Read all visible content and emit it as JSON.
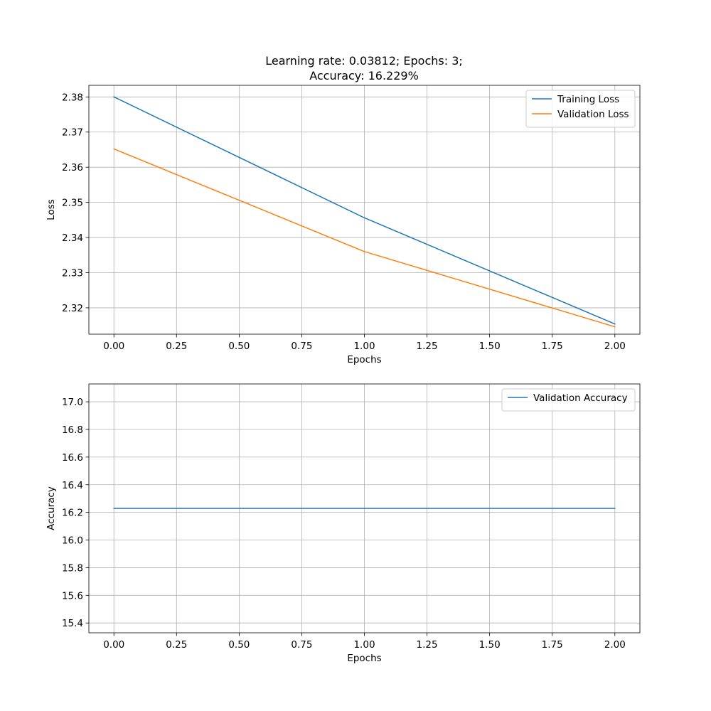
{
  "figure": {
    "title_line1": "Learning rate: 0.03812; Epochs: 3;",
    "title_line2": "Accuracy: 16.229%"
  },
  "chart_data": [
    {
      "type": "line",
      "xlabel": "Epochs",
      "ylabel": "Loss",
      "xlim": [
        -0.1,
        2.1
      ],
      "ylim": [
        2.3125,
        2.3833
      ],
      "xticks": [
        0.0,
        0.25,
        0.5,
        0.75,
        1.0,
        1.25,
        1.5,
        1.75,
        2.0
      ],
      "xtick_labels": [
        "0.00",
        "0.25",
        "0.50",
        "0.75",
        "1.00",
        "1.25",
        "1.50",
        "1.75",
        "2.00"
      ],
      "yticks": [
        2.32,
        2.33,
        2.34,
        2.35,
        2.36,
        2.37,
        2.38
      ],
      "ytick_labels": [
        "2.32",
        "2.33",
        "2.34",
        "2.35",
        "2.36",
        "2.37",
        "2.38"
      ],
      "grid": true,
      "legend_position": "top-right",
      "x": [
        0,
        1,
        2
      ],
      "series": [
        {
          "name": "Training Loss",
          "color": "#1f77b4",
          "values": [
            2.38,
            2.3456,
            2.3154
          ]
        },
        {
          "name": "Validation Loss",
          "color": "#ff7f0e",
          "values": [
            2.3652,
            2.336,
            2.3146
          ]
        }
      ]
    },
    {
      "type": "line",
      "xlabel": "Epochs",
      "ylabel": "Accuracy",
      "xlim": [
        -0.1,
        2.1
      ],
      "ylim": [
        15.329,
        17.129
      ],
      "xticks": [
        0.0,
        0.25,
        0.5,
        0.75,
        1.0,
        1.25,
        1.5,
        1.75,
        2.0
      ],
      "xtick_labels": [
        "0.00",
        "0.25",
        "0.50",
        "0.75",
        "1.00",
        "1.25",
        "1.50",
        "1.75",
        "2.00"
      ],
      "yticks": [
        15.4,
        15.6,
        15.8,
        16.0,
        16.2,
        16.4,
        16.6,
        16.8,
        17.0
      ],
      "ytick_labels": [
        "15.4",
        "15.6",
        "15.8",
        "16.0",
        "16.2",
        "16.4",
        "16.6",
        "16.8",
        "17.0"
      ],
      "grid": true,
      "legend_position": "top-right",
      "x": [
        0,
        1,
        2
      ],
      "series": [
        {
          "name": "Validation Accuracy",
          "color": "#1f77b4",
          "values": [
            16.229,
            16.229,
            16.229
          ]
        }
      ]
    }
  ]
}
